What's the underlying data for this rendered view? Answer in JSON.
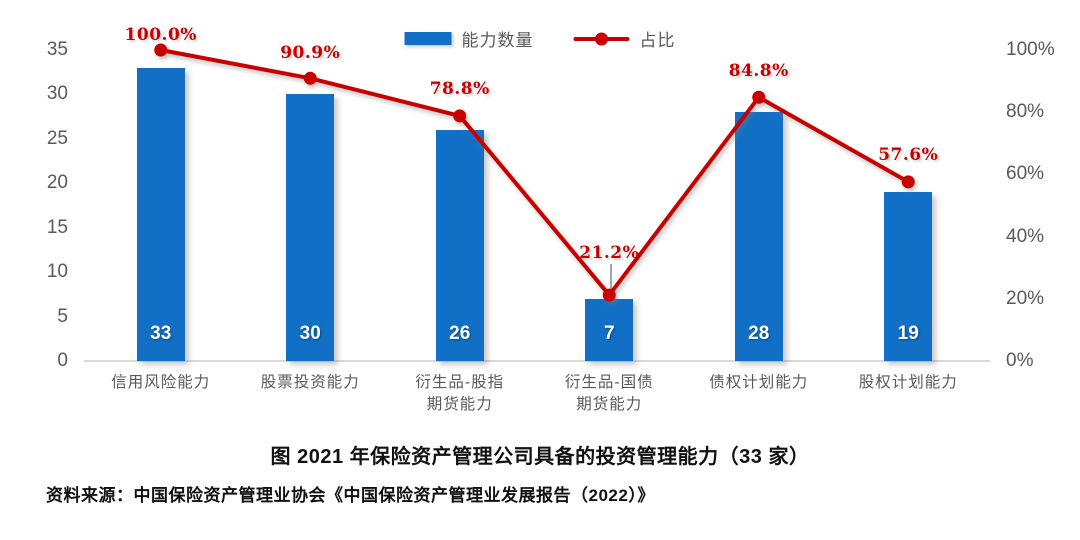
{
  "chart_data": {
    "type": "bar+line combo",
    "title": "图 2021 年保险资产管理公司具备的投资管理能力（33 家）",
    "categories": [
      "信用风险能力",
      "股票投资能力",
      "衍生品-股指\n期货能力",
      "衍生品-国债\n期货能力",
      "债权计划能力",
      "股权计划能力"
    ],
    "series": [
      {
        "name": "能力数量",
        "type": "bar",
        "axis": "left",
        "values": [
          33,
          30,
          26,
          7,
          28,
          19
        ],
        "color": "#1170C5"
      },
      {
        "name": "占比",
        "type": "line",
        "axis": "right",
        "values": [
          100.0,
          90.9,
          78.8,
          21.2,
          84.8,
          57.6
        ],
        "labels": [
          "100.0%",
          "90.9%",
          "78.8%",
          "21.2%",
          "84.8%",
          "57.6%"
        ],
        "color": "#C80000"
      }
    ],
    "axes": {
      "left": {
        "ticks": [
          "35",
          "30",
          "25",
          "20",
          "15",
          "10",
          "5",
          "0"
        ],
        "range": [
          0,
          35
        ]
      },
      "right": {
        "ticks": [
          "100%",
          "80%",
          "60%",
          "40%",
          "20%",
          "0%"
        ],
        "range": [
          0,
          100
        ]
      }
    },
    "legend": {
      "position": "top-center"
    },
    "label_dy": [
      -15,
      -25,
      -27,
      -42,
      -26,
      -27
    ],
    "leader_lines": [
      false,
      false,
      false,
      true,
      false,
      false
    ],
    "grid": "off"
  },
  "source_note": "资料来源：中国保险资产管理业协会《中国保险资产管理业发展报告（2022）》",
  "colors": {
    "bar": "#1170C5",
    "line": "#C80000",
    "axis_text": "#595959",
    "axis_line": "#D9D9D9",
    "bar_value_text": "#FFFFFF",
    "leader_line": "#A6A6A6"
  }
}
